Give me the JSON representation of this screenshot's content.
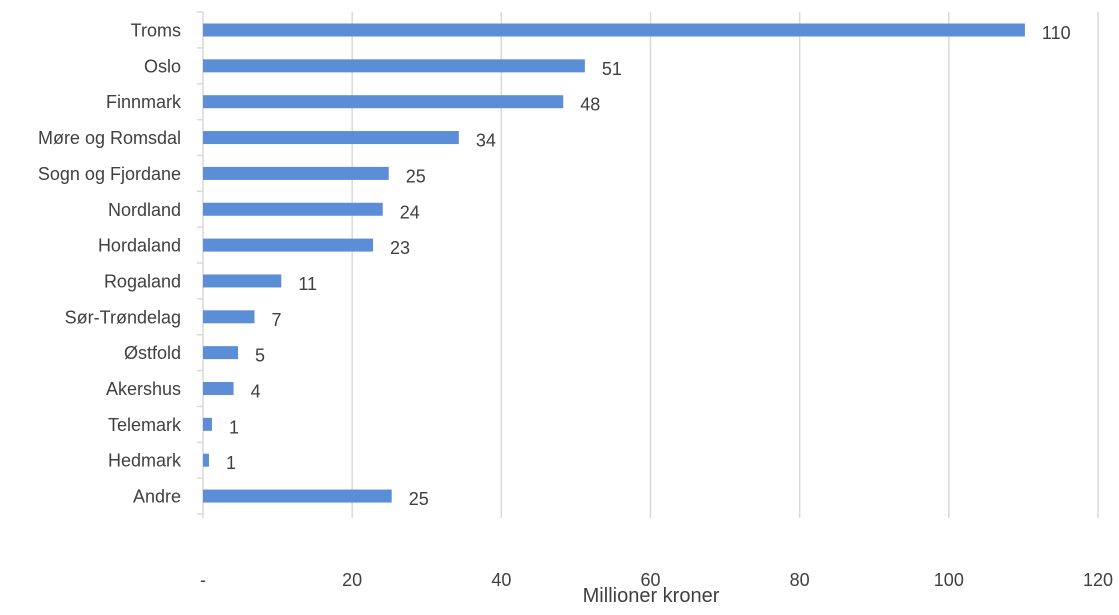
{
  "chart_data": {
    "type": "bar",
    "orientation": "horizontal",
    "categories": [
      "Troms",
      "Oslo",
      "Finnmark",
      "Møre og Romsdal",
      "Sogn og Fjordane",
      "Nordland",
      "Hordaland",
      "Rogaland",
      "Sør-Trøndelag",
      "Østfold",
      "Akershus",
      "Telemark",
      "Hedmark",
      "Andre"
    ],
    "values": [
      110.2,
      51.2,
      48.3,
      34.3,
      24.9,
      24.1,
      22.8,
      10.5,
      6.9,
      4.7,
      4.1,
      1.2,
      0.8,
      25.3
    ],
    "data_labels": [
      "110",
      "51",
      "48",
      "34",
      "25",
      "24",
      "23",
      "11",
      "7",
      "5",
      "4",
      "1",
      "1",
      "25"
    ],
    "title": "",
    "xlabel": "Millioner kroner",
    "ylabel": "",
    "xlim": [
      0,
      120
    ],
    "x_ticks": [
      0,
      20,
      40,
      60,
      80,
      100,
      120
    ],
    "x_tick_labels": [
      "-",
      "20",
      "40",
      "60",
      "80",
      "100",
      "120"
    ],
    "grid": true,
    "legend": "none",
    "bar_color": "#5B8ED6",
    "grid_color": "#D9D9D9",
    "text_color": "#404040"
  }
}
